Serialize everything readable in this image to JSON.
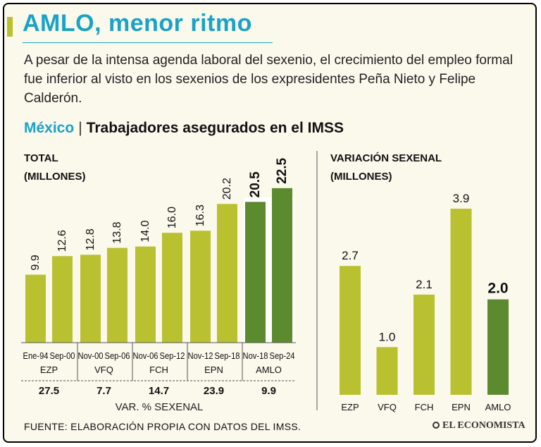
{
  "title": "AMLO, menor ritmo",
  "subtitle": "A pesar de la intensa agenda laboral del sexenio, el crecimiento del empleo formal fue inferior al visto en los sexenios de los expresidentes Peña Nieto y Felipe Calderón.",
  "section": {
    "country": "México",
    "separator": "|",
    "label": "Trabajadores asegurados en el IMSS"
  },
  "left_panel": {
    "label_line1": "TOTAL",
    "label_line2": "(MILLONES)",
    "var_label": "VAR. % SEXENAL"
  },
  "right_panel": {
    "label_line1": "VARIACIÓN SEXENAL",
    "label_line2": "(MILLONES)"
  },
  "footer": "FUENTE: ELABORACIÓN PROPIA CON DATOS DEL IMSS.",
  "brand": "EL ECONOMISTA",
  "colors": {
    "olive": "#b9c131",
    "dark_green": "#5c8a2e",
    "accent": "#1aa3c6"
  },
  "chart_data": [
    {
      "type": "bar",
      "title": "TOTAL",
      "ylabel": "(MILLONES)",
      "categories": [
        "Ene-94",
        "Sep-00",
        "Nov-00",
        "Sep-06",
        "Nov-06",
        "Sep-12",
        "Nov-12",
        "Sep-18",
        "Nov-18",
        "Sep-24"
      ],
      "values": [
        9.9,
        12.6,
        12.8,
        13.8,
        14.0,
        16.0,
        16.3,
        20.2,
        20.5,
        22.5
      ],
      "value_labels": [
        "9.9",
        "12.6",
        "12.8",
        "13.8",
        "14.0",
        "16.0",
        "16.3",
        "20.2",
        "20.5",
        "22.5"
      ],
      "groups": [
        "EZP",
        "VFQ",
        "FCH",
        "EPN",
        "AMLO"
      ],
      "group_var_pct": [
        "27.5",
        "7.7",
        "14.7",
        "23.9",
        "9.9"
      ],
      "ylim": [
        0,
        23
      ]
    },
    {
      "type": "bar",
      "title": "VARIACIÓN SEXENAL",
      "ylabel": "(MILLONES)",
      "categories": [
        "EZP",
        "VFQ",
        "FCH",
        "EPN",
        "AMLO"
      ],
      "values": [
        2.7,
        1.0,
        2.1,
        3.9,
        2.0
      ],
      "value_labels": [
        "2.7",
        "1.0",
        "2.1",
        "3.9",
        "2.0"
      ],
      "ylim": [
        0,
        4.2
      ]
    }
  ]
}
